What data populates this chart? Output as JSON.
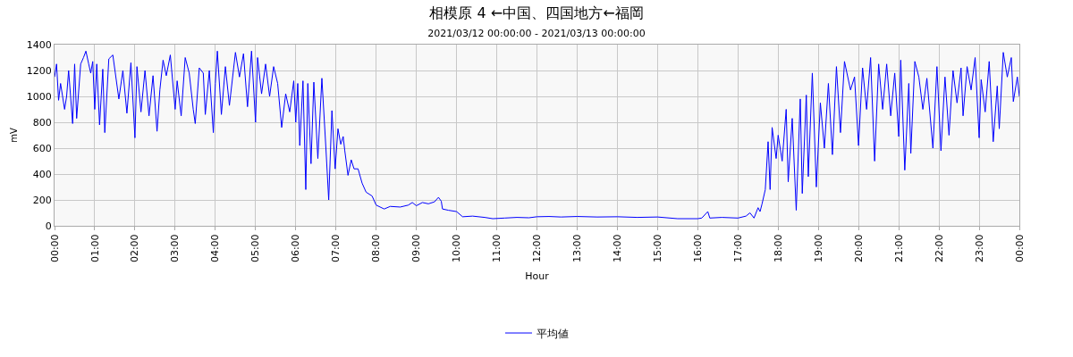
{
  "chart_data": {
    "type": "line",
    "title": "相模原 4 ←中国、四国地方←福岡",
    "subtitle": "2021/03/12 00:00:00 - 2021/03/13 00:00:00",
    "xlabel": "Hour",
    "ylabel": "mV",
    "x": [
      0,
      0.05,
      0.1,
      0.15,
      0.25,
      0.3,
      0.35,
      0.45,
      0.5,
      0.55,
      0.65,
      0.72,
      0.78,
      0.85,
      0.9,
      0.95,
      1.0,
      1.05,
      1.12,
      1.2,
      1.25,
      1.35,
      1.45,
      1.6,
      1.7,
      1.8,
      1.9,
      2.0,
      2.05,
      2.15,
      2.25,
      2.35,
      2.45,
      2.55,
      2.62,
      2.7,
      2.78,
      2.88,
      3.0,
      3.05,
      3.15,
      3.25,
      3.35,
      3.45,
      3.5,
      3.6,
      3.7,
      3.75,
      3.85,
      3.95,
      4.0,
      4.05,
      4.15,
      4.25,
      4.35,
      4.5,
      4.6,
      4.7,
      4.8,
      4.9,
      5.0,
      5.05,
      5.15,
      5.25,
      5.35,
      5.45,
      5.55,
      5.65,
      5.75,
      5.85,
      5.95,
      6.0,
      6.05,
      6.1,
      6.18,
      6.25,
      6.3,
      6.38,
      6.45,
      6.55,
      6.65,
      6.75,
      6.82,
      6.9,
      6.98,
      7.05,
      7.12,
      7.18,
      7.22,
      7.3,
      7.38,
      7.45,
      7.55,
      7.65,
      7.75,
      7.9,
      8.0,
      8.2,
      8.35,
      8.6,
      8.8,
      8.9,
      9.0,
      9.15,
      9.3,
      9.45,
      9.55,
      9.62,
      9.65,
      9.8,
      10.0,
      10.15,
      10.4,
      10.7,
      10.9,
      11.2,
      11.5,
      11.8,
      12.0,
      12.3,
      12.6,
      13.0,
      13.5,
      14.0,
      14.5,
      15.0,
      15.5,
      16.0,
      16.1,
      16.25,
      16.3,
      16.6,
      17.0,
      17.2,
      17.3,
      17.4,
      17.5,
      17.55,
      17.6,
      17.68,
      17.75,
      17.8,
      17.85,
      17.95,
      18.0,
      18.1,
      18.2,
      18.25,
      18.35,
      18.45,
      18.55,
      18.6,
      18.7,
      18.75,
      18.85,
      18.95,
      19.05,
      19.15,
      19.25,
      19.35,
      19.45,
      19.55,
      19.65,
      19.8,
      19.9,
      20.0,
      20.1,
      20.2,
      20.3,
      20.4,
      20.5,
      20.6,
      20.7,
      20.8,
      20.9,
      21.0,
      21.05,
      21.15,
      21.25,
      21.3,
      21.4,
      21.5,
      21.6,
      21.7,
      21.85,
      21.95,
      22.05,
      22.15,
      22.25,
      22.35,
      22.45,
      22.55,
      22.6,
      22.7,
      22.8,
      22.9,
      23.0,
      23.05,
      23.15,
      23.25,
      23.35,
      23.45,
      23.5,
      23.6,
      23.7,
      23.8,
      23.85,
      23.95,
      24.0
    ],
    "series": [
      {
        "name": "平均値",
        "color": "#0000ff",
        "values": [
          1150,
          1250,
          970,
          1100,
          900,
          1000,
          1200,
          790,
          1250,
          830,
          1250,
          1300,
          1350,
          1250,
          1180,
          1270,
          900,
          1250,
          780,
          1210,
          720,
          1290,
          1320,
          980,
          1200,
          870,
          1260,
          680,
          1230,
          880,
          1200,
          850,
          1160,
          730,
          1050,
          1280,
          1160,
          1320,
          900,
          1120,
          850,
          1300,
          1180,
          900,
          790,
          1220,
          1180,
          860,
          1200,
          720,
          1100,
          1350,
          860,
          1230,
          930,
          1340,
          1150,
          1330,
          920,
          1350,
          800,
          1300,
          1020,
          1250,
          1000,
          1230,
          1100,
          760,
          1020,
          880,
          1120,
          800,
          1100,
          620,
          1120,
          280,
          1100,
          480,
          1110,
          520,
          1140,
          600,
          200,
          890,
          440,
          750,
          630,
          690,
          580,
          390,
          510,
          440,
          440,
          330,
          260,
          230,
          160,
          130,
          150,
          145,
          160,
          180,
          155,
          180,
          170,
          185,
          220,
          190,
          130,
          120,
          110,
          70,
          75,
          65,
          55,
          60,
          65,
          62,
          70,
          72,
          68,
          72,
          68,
          70,
          65,
          68,
          55,
          55,
          60,
          110,
          60,
          65,
          60,
          75,
          100,
          60,
          140,
          110,
          170,
          280,
          650,
          280,
          760,
          520,
          700,
          500,
          900,
          340,
          830,
          120,
          980,
          250,
          1010,
          380,
          1180,
          300,
          950,
          600,
          1100,
          550,
          1230,
          720,
          1270,
          1050,
          1150,
          620,
          1220,
          900,
          1300,
          500,
          1250,
          900,
          1250,
          850,
          1180,
          690,
          1280,
          430,
          1100,
          560,
          1270,
          1150,
          900,
          1140,
          600,
          1230,
          580,
          1150,
          700,
          1200,
          950,
          1220,
          850,
          1230,
          1050,
          1300,
          680,
          1130,
          880,
          1270,
          650,
          1080,
          750,
          1340,
          1150,
          1300,
          960,
          1150,
          1000
        ]
      }
    ],
    "xlim": [
      0,
      24
    ],
    "xticks": [
      {
        "value": 0,
        "label": "00:00"
      },
      {
        "value": 1,
        "label": "01:00"
      },
      {
        "value": 2,
        "label": "02:00"
      },
      {
        "value": 3,
        "label": "03:00"
      },
      {
        "value": 4,
        "label": "04:00"
      },
      {
        "value": 5,
        "label": "05:00"
      },
      {
        "value": 6,
        "label": "06:00"
      },
      {
        "value": 7,
        "label": "07:00"
      },
      {
        "value": 8,
        "label": "08:00"
      },
      {
        "value": 9,
        "label": "09:00"
      },
      {
        "value": 10,
        "label": "10:00"
      },
      {
        "value": 11,
        "label": "11:00"
      },
      {
        "value": 12,
        "label": "12:00"
      },
      {
        "value": 13,
        "label": "13:00"
      },
      {
        "value": 14,
        "label": "14:00"
      },
      {
        "value": 15,
        "label": "15:00"
      },
      {
        "value": 16,
        "label": "16:00"
      },
      {
        "value": 17,
        "label": "17:00"
      },
      {
        "value": 18,
        "label": "18:00"
      },
      {
        "value": 19,
        "label": "19:00"
      },
      {
        "value": 20,
        "label": "20:00"
      },
      {
        "value": 21,
        "label": "21:00"
      },
      {
        "value": 22,
        "label": "22:00"
      },
      {
        "value": 23,
        "label": "23:00"
      },
      {
        "value": 24,
        "label": "00:00"
      }
    ],
    "ylim": [
      0,
      1400
    ],
    "yticks": [
      0,
      200,
      400,
      600,
      800,
      1000,
      1200,
      1400
    ],
    "grid": true,
    "legend": "bottom",
    "marker": "none",
    "line_style": "solid"
  }
}
